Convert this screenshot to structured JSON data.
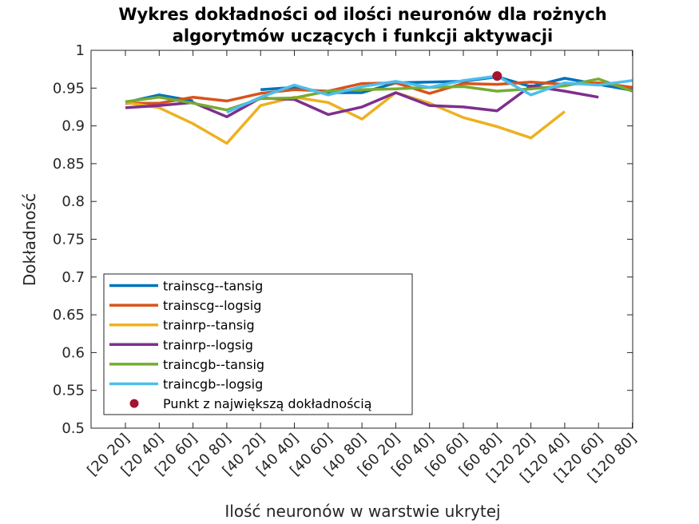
{
  "chart_data": {
    "type": "line",
    "title": [
      "Wykres dokładności od ilości neuronów dla rożnych",
      "algorytmów uczących i funkcji aktywacji"
    ],
    "xlabel": "Ilość neuronów w warstwie ukrytej",
    "ylabel": "Dokładność",
    "categories": [
      "[20 20]",
      "[20 40]",
      "[20 60]",
      "[20 80]",
      "[40 20]",
      "[40 40]",
      "[40 60]",
      "[40 80]",
      "[60 20]",
      "[60 40]",
      "[60 60]",
      "[60 80]",
      "[120 20]",
      "[120 40]",
      "[120 60]",
      "[120 80]"
    ],
    "yticks": [
      "0.5",
      "0.55",
      "0.6",
      "0.65",
      "0.7",
      "0.75",
      "0.8",
      "0.85",
      "0.9",
      "0.95",
      "1"
    ],
    "ylim": [
      0.5,
      1
    ],
    "grid": false,
    "legend_position": "bottom-left",
    "series": [
      {
        "name": "trainscg--tansig",
        "color": "#0072BD",
        "values": [
          0.931,
          0.941,
          0.933,
          null,
          0.948,
          0.951,
          0.944,
          0.944,
          0.957,
          0.958,
          0.959,
          0.965,
          0.952,
          0.963,
          0.955,
          0.947
        ]
      },
      {
        "name": "trainscg--logsig",
        "color": "#D95319",
        "values": [
          0.93,
          0.93,
          0.938,
          0.933,
          0.943,
          0.948,
          0.946,
          0.956,
          0.957,
          0.943,
          0.956,
          0.955,
          0.958,
          0.955,
          0.957,
          0.951
        ]
      },
      {
        "name": "trainrp--tansig",
        "color": "#EDB120",
        "values": [
          0.931,
          0.924,
          0.903,
          0.877,
          0.927,
          0.938,
          0.931,
          0.909,
          0.944,
          0.93,
          0.911,
          0.899,
          0.884,
          0.919,
          null,
          null
        ]
      },
      {
        "name": "trainrp--logsig",
        "color": "#7E2F8E",
        "values": [
          0.924,
          0.927,
          0.931,
          0.912,
          0.937,
          0.935,
          0.915,
          0.925,
          0.944,
          0.927,
          0.925,
          0.92,
          0.953,
          0.946,
          0.938,
          null
        ]
      },
      {
        "name": "traincgb--tansig",
        "color": "#77AC30",
        "values": [
          0.932,
          0.938,
          0.93,
          0.921,
          0.936,
          0.937,
          0.946,
          0.948,
          0.949,
          0.951,
          0.952,
          0.946,
          0.949,
          0.953,
          0.962,
          0.946
        ]
      },
      {
        "name": "traincgb--logsig",
        "color": "#4DBEEE",
        "values": [
          null,
          null,
          null,
          0.918,
          0.938,
          0.954,
          0.941,
          0.952,
          0.959,
          0.951,
          0.96,
          0.966,
          0.941,
          0.957,
          0.954,
          0.96
        ]
      }
    ],
    "highlight": {
      "name": "Punkt z największą dokładnością",
      "x": "[60 80]",
      "y": 0.966,
      "color": "#A2142F"
    }
  }
}
